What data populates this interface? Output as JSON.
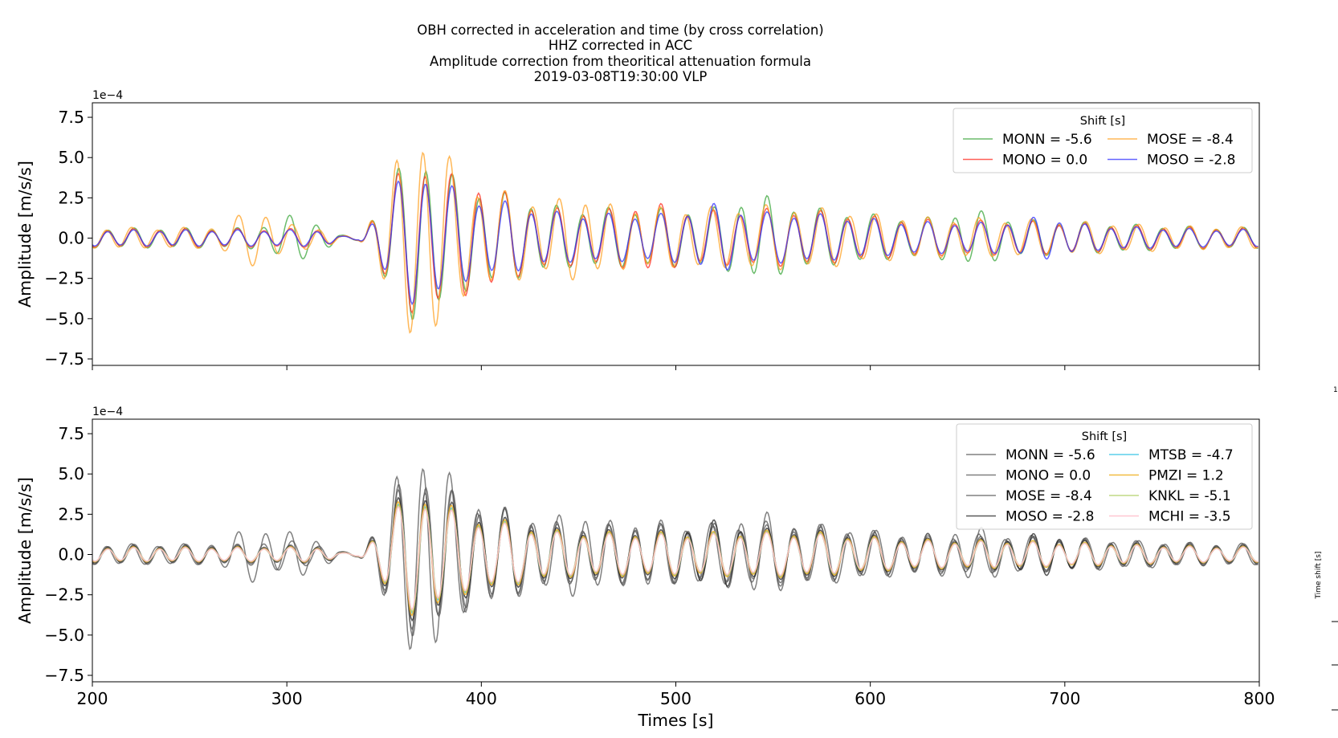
{
  "figure": {
    "title_lines": [
      "OBH corrected in acceleration and time (by cross correlation)",
      "HHZ corrected in ACC",
      "Amplitude correction from theoritical attenuation formula",
      "2019-03-08T19:30:00 VLP"
    ],
    "side_panel": {
      "label": "Time shift [s]",
      "corner_digit": "1"
    }
  },
  "chart_data": [
    {
      "type": "line",
      "panel": "top",
      "title": "",
      "xlabel": "",
      "ylabel": "Amplitude [m/s/s]",
      "exponent_label": "1e−4",
      "xlim": [
        200,
        800
      ],
      "ylim": [
        -7.9,
        8.4
      ],
      "x_ticks": [
        200,
        300,
        400,
        500,
        600,
        700,
        800
      ],
      "y_ticks": [
        -7.5,
        -5.0,
        -2.5,
        0.0,
        2.5,
        5.0,
        7.5
      ],
      "y_tick_labels": [
        "−7.5",
        "−5.0",
        "−2.5",
        "0.0",
        "2.5",
        "5.0",
        "7.5"
      ],
      "legend": {
        "title": "Shift [s]",
        "placement": "upper right",
        "columns": 2
      },
      "series": [
        {
          "name": "MONN",
          "label": "MONN = -5.6",
          "shift": -5.6,
          "color": "#2ca02c",
          "opacity": 0.7,
          "amp": 1.08,
          "phase": 0.2,
          "bumps": [
            [
              304,
              0.7
            ],
            [
              542,
              0.65
            ],
            [
              652,
              0.5
            ]
          ]
        },
        {
          "name": "MONO",
          "label": "MONO = 0.0",
          "shift": 0.0,
          "color": "#ff2a1f",
          "opacity": 0.75,
          "amp": 1.0,
          "phase": 0.0,
          "bumps": [
            [
              398,
              0.6
            ],
            [
              486,
              0.45
            ]
          ]
        },
        {
          "name": "MOSE",
          "label": "MOSE = -8.4",
          "shift": -8.4,
          "color": "#ffa020",
          "opacity": 0.75,
          "amp": 1.12,
          "phase": 0.5,
          "bumps": [
            [
              372,
              1.3
            ],
            [
              284,
              1.0
            ],
            [
              450,
              0.6
            ]
          ]
        },
        {
          "name": "MOSO",
          "label": "MOSO = -2.8",
          "shift": -2.8,
          "color": "#3030ff",
          "opacity": 0.75,
          "amp": 0.88,
          "phase": -0.12,
          "bumps": [
            [
              520,
              0.55
            ],
            [
              690,
              0.4
            ]
          ]
        }
      ]
    },
    {
      "type": "line",
      "panel": "bottom",
      "title": "",
      "xlabel": "Times [s]",
      "ylabel": "Amplitude [m/s/s]",
      "exponent_label": "1e−4",
      "xlim": [
        200,
        800
      ],
      "ylim": [
        -7.9,
        8.4
      ],
      "x_ticks": [
        200,
        300,
        400,
        500,
        600,
        700,
        800
      ],
      "x_tick_labels": [
        "200",
        "300",
        "400",
        "500",
        "600",
        "700",
        "800"
      ],
      "y_ticks": [
        -7.5,
        -5.0,
        -2.5,
        0.0,
        2.5,
        5.0,
        7.5
      ],
      "y_tick_labels": [
        "−7.5",
        "−5.0",
        "−2.5",
        "0.0",
        "2.5",
        "5.0",
        "7.5"
      ],
      "legend": {
        "title": "Shift [s]",
        "placement": "upper right",
        "columns": 2
      },
      "series": [
        {
          "name": "MONN",
          "label": "MONN = -5.6",
          "shift": -5.6,
          "color": "#555555",
          "opacity": 0.75,
          "amp": 1.08,
          "phase": 0.2,
          "bumps": [
            [
              304,
              0.7
            ],
            [
              542,
              0.65
            ],
            [
              652,
              0.5
            ]
          ]
        },
        {
          "name": "MONO",
          "label": "MONO = 0.0",
          "shift": 0.0,
          "color": "#555555",
          "opacity": 0.75,
          "amp": 1.0,
          "phase": 0.0,
          "bumps": [
            [
              398,
              0.6
            ],
            [
              486,
              0.45
            ]
          ]
        },
        {
          "name": "MOSE",
          "label": "MOSE = -8.4",
          "shift": -8.4,
          "color": "#555555",
          "opacity": 0.75,
          "amp": 1.12,
          "phase": 0.5,
          "bumps": [
            [
              372,
              1.3
            ],
            [
              284,
              1.0
            ],
            [
              450,
              0.6
            ]
          ]
        },
        {
          "name": "MOSO",
          "label": "MOSO = -2.8",
          "shift": -2.8,
          "color": "#222222",
          "opacity": 0.75,
          "amp": 0.88,
          "phase": -0.12,
          "bumps": [
            [
              520,
              0.55
            ],
            [
              690,
              0.4
            ]
          ]
        },
        {
          "name": "MTSB",
          "label": "MTSB = -4.7",
          "shift": -4.7,
          "color": "#3fc7e8",
          "opacity": 0.85,
          "amp": 0.78,
          "phase": 0.06,
          "bumps": []
        },
        {
          "name": "PMZI",
          "label": "PMZI = 1.2",
          "shift": 1.2,
          "color": "#f0b020",
          "opacity": 0.85,
          "amp": 0.82,
          "phase": -0.03,
          "bumps": []
        },
        {
          "name": "KNKL",
          "label": "KNKL = -5.1",
          "shift": -5.1,
          "color": "#b5d470",
          "opacity": 0.85,
          "amp": 0.76,
          "phase": 0.09,
          "bumps": []
        },
        {
          "name": "MCHI",
          "label": "MCHI = -3.5",
          "shift": -3.5,
          "color": "#ffc0cb",
          "opacity": 0.9,
          "amp": 0.74,
          "phase": 0.02,
          "bumps": []
        }
      ]
    }
  ]
}
